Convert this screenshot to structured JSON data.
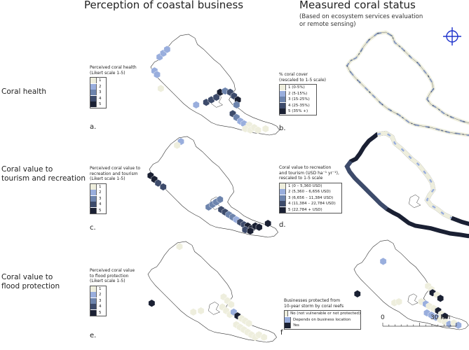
{
  "columns": {
    "left_title": "Perception of coastal business",
    "right_title": "Measured coral status",
    "right_subtitle_line1": "(Based on ecosystem services evaluation",
    "right_subtitle_line2": "or remote sensing)"
  },
  "rows": [
    {
      "label": "Coral health"
    },
    {
      "label_line1": "Coral value to",
      "label_line2": "tourism and recreation"
    },
    {
      "label_line1": "Coral value to",
      "label_line2": "flood protection"
    }
  ],
  "panels": {
    "a": {
      "letter": "a.",
      "legend_title_line1": "Perceived coral health",
      "legend_title_line2": "(Likert scale 1-5)",
      "items": [
        "1",
        "2",
        "3",
        "4",
        "5"
      ]
    },
    "b": {
      "letter": "b.",
      "legend_title_line1": "% coral cover",
      "legend_title_line2": "(rescaled to 1-5 scale)",
      "items": [
        "1 (0-5%)",
        "2 (5-15%)",
        "3 (15-25%)",
        "4 (25-35%)",
        "5 (35% +)"
      ]
    },
    "c": {
      "letter": "c.",
      "legend_title_line1": "Perceived coral value to",
      "legend_title_line2": "recreation and tourism",
      "legend_title_line3": "(Likert scale 1-5)",
      "items": [
        "1",
        "2",
        "3",
        "4",
        "5"
      ]
    },
    "d": {
      "letter": "d.",
      "legend_title_line1": "Coral value to recreation",
      "legend_title_line2": "and tourism (USD ha⁻¹ yr⁻¹),",
      "legend_title_line3": "rescaled to 1-5 scale",
      "items": [
        "1 (0 – 5,360 USD)",
        "2 (5,360 – 6,656 USD)",
        "3 (6,656 – 11,384 USD)",
        "4 (11,384 – 22,784 USD)",
        "5 (22,784 + USD)"
      ]
    },
    "e": {
      "letter": "e.",
      "legend_title_line1": "Perceived coral value",
      "legend_title_line2": "to flood protection",
      "legend_title_line3": "(Likert scale 1-5)",
      "items": [
        "1",
        "2",
        "3",
        "4",
        "5"
      ]
    },
    "f": {
      "letter": "f",
      "legend_title_line1": "Businesses protected from",
      "legend_title_line2": "10-year storm by coral reefs",
      "items": [
        "No (not vulnerable or not protected)",
        "Depends on business location",
        "Yes"
      ]
    }
  },
  "scale_bar": {
    "start": "0",
    "end": "30 km"
  },
  "colors": {
    "level1": "#eeeedd",
    "level2": "#99aedd",
    "level3": "#6d84ad",
    "level4": "#3d4b6b",
    "level5": "#1a2033",
    "compass": "#1f33cc",
    "outline": "#333333"
  },
  "icons": {
    "compass": "north-arrow-compass-icon"
  }
}
